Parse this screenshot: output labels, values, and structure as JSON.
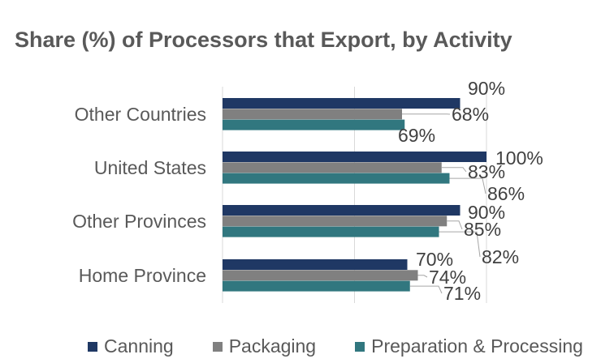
{
  "chart_data": {
    "type": "bar",
    "orientation": "horizontal",
    "title": "Share (%) of Processors that Export, by Activity",
    "xlabel": "",
    "ylabel": "",
    "xlim": [
      0,
      100
    ],
    "categories": [
      "Other Countries",
      "United States",
      "Other Provinces",
      "Home Province"
    ],
    "series": [
      {
        "name": "Canning",
        "color": "#1f3864",
        "values": [
          90,
          100,
          90,
          70
        ]
      },
      {
        "name": "Packaging",
        "color": "#808080",
        "values": [
          68,
          83,
          85,
          74
        ]
      },
      {
        "name": "Preparation & Processing",
        "color": "#31777f",
        "values": [
          69,
          86,
          82,
          71
        ]
      }
    ],
    "value_labels": [
      [
        "90%",
        "100%",
        "90%",
        "70%"
      ],
      [
        "68%",
        "83%",
        "85%",
        "74%"
      ],
      [
        "69%",
        "86%",
        "82%",
        "71%"
      ]
    ],
    "grid": true,
    "legend_position": "bottom"
  }
}
